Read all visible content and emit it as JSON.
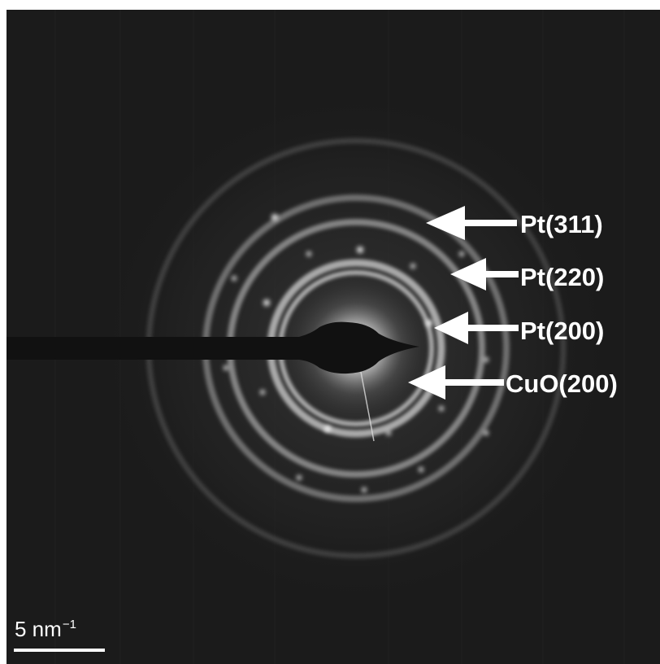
{
  "image": {
    "kind": "selected area electron diffraction pattern",
    "background_color": "#1b1b1b",
    "ring_color": "#ffffff",
    "annotation_color": "#ffffff"
  },
  "ring_labels": [
    {
      "id": "pt311",
      "text": "Pt(311)"
    },
    {
      "id": "pt220",
      "text": "Pt(220)"
    },
    {
      "id": "pt200",
      "text": "Pt(200)"
    },
    {
      "id": "cuo200",
      "text": "CuO(200)"
    }
  ],
  "scale_bar": {
    "value_text": "5 nm",
    "exponent": "−1"
  }
}
